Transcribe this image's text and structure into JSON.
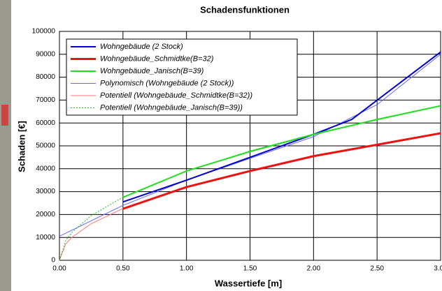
{
  "chart_data": {
    "type": "line",
    "title": "Schadensfunktionen",
    "xlabel": "Wassertiefe [m]",
    "ylabel": "Schaden [€]",
    "xlim": [
      0,
      3
    ],
    "ylim": [
      0,
      100000
    ],
    "xticks": [
      {
        "value": 0,
        "label": "0.00"
      },
      {
        "value": 0.5,
        "label": "0.50"
      },
      {
        "value": 1,
        "label": "1.00"
      },
      {
        "value": 1.5,
        "label": "1.50"
      },
      {
        "value": 2,
        "label": "2.00"
      },
      {
        "value": 2.5,
        "label": "2.50"
      },
      {
        "value": 3,
        "label": "3.00"
      }
    ],
    "yticks": [
      0,
      10000,
      20000,
      30000,
      40000,
      50000,
      60000,
      70000,
      80000,
      90000,
      100000
    ],
    "grid": true,
    "legend": "upper left",
    "series": [
      {
        "name": "Wohngebäude (2 Stock)",
        "color": "#0000cc",
        "linewidth": 2,
        "linestyle": "solid",
        "x": [
          0.5,
          1,
          1.5,
          2,
          2.3,
          3
        ],
        "values": [
          25500,
          35000,
          45000,
          55000,
          61500,
          91000
        ]
      },
      {
        "name": "Wohngebäude_Schmidtke(B=32)",
        "color": "#ee1111",
        "linewidth": 3,
        "linestyle": "solid",
        "x": [
          0.5,
          1,
          1.5,
          2,
          2.5,
          3
        ],
        "values": [
          22500,
          32000,
          39000,
          45500,
          50500,
          55500
        ]
      },
      {
        "name": "Wohngebäude_Janisch(B=39)",
        "color": "#22dd22",
        "linewidth": 2,
        "linestyle": "solid",
        "x": [
          0.5,
          1,
          1.5,
          2,
          2.5,
          3
        ],
        "values": [
          27500,
          39000,
          47500,
          55000,
          61500,
          67500
        ]
      },
      {
        "name": "Polynomisch (Wohngebäude (2 Stock))",
        "color": "#6666ff",
        "linewidth": 1,
        "linestyle": "solid",
        "x": [
          0,
          0.5,
          1,
          1.5,
          2,
          2.5,
          3
        ],
        "values": [
          10500,
          24000,
          35000,
          44500,
          54000,
          68000,
          90000
        ]
      },
      {
        "name": "Potentiell (Wohngebäude_Schmidtke(B=32))",
        "color": "#ff7777",
        "linewidth": 1,
        "linestyle": "solid",
        "x": [
          0,
          0.05,
          0.1,
          0.25,
          0.5,
          1,
          1.5,
          2,
          2.5,
          3
        ],
        "values": [
          0,
          7200,
          10100,
          16000,
          22600,
          32000,
          39200,
          45300,
          50600,
          55400
        ]
      },
      {
        "name": "Potentiell (Wohngebäude_Janisch(B=39))",
        "color": "#22bb22",
        "linewidth": 1,
        "linestyle": "dotted",
        "x": [
          0,
          0.05,
          0.1,
          0.25,
          0.5,
          1,
          1.5,
          2,
          2.5,
          3
        ],
        "values": [
          0,
          8700,
          12300,
          19500,
          27600,
          39000,
          47800,
          55200,
          61700,
          67500
        ]
      }
    ]
  }
}
